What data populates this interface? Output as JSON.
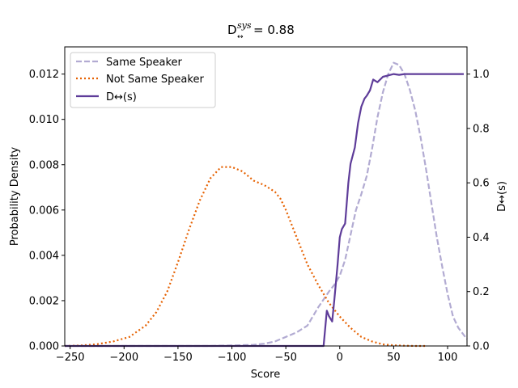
{
  "chart_data": {
    "type": "line",
    "title": {
      "main": "D",
      "sup": "sys",
      "sub": "↔",
      "rest": " = 0.88"
    },
    "xlabel": "Score",
    "ylabel_left": "Probability Density",
    "ylabel_right": "D↔(s)",
    "xlim": [
      -255,
      118
    ],
    "ylim_left": [
      0,
      0.0132
    ],
    "ylim_right": [
      0,
      1.1
    ],
    "x_ticks": [
      -250,
      -200,
      -150,
      -100,
      -50,
      0,
      50,
      100
    ],
    "x_tick_labels": [
      "−250",
      "−200",
      "−150",
      "−100",
      "−50",
      "0",
      "50",
      "100"
    ],
    "y_left_ticks": [
      0,
      0.002,
      0.004,
      0.006,
      0.008,
      0.01,
      0.012
    ],
    "y_left_tick_labels": [
      "0.000",
      "0.002",
      "0.004",
      "0.006",
      "0.008",
      "0.010",
      "0.012"
    ],
    "y_right_ticks": [
      0,
      0.2,
      0.4,
      0.6,
      0.8,
      1.0
    ],
    "y_right_tick_labels": [
      "0.0",
      "0.2",
      "0.4",
      "0.6",
      "0.8",
      "1.0"
    ],
    "grid": false,
    "legend_position": "top-left",
    "series": [
      {
        "name": "Same Speaker",
        "axis": "left",
        "color": "#b2abd2",
        "style": "dashed",
        "x": [
          -255,
          -120,
          -100,
          -80,
          -70,
          -60,
          -50,
          -40,
          -30,
          -20,
          -10,
          -5,
          0,
          5,
          10,
          15,
          20,
          25,
          30,
          35,
          40,
          45,
          50,
          55,
          60,
          65,
          70,
          75,
          80,
          85,
          90,
          95,
          100,
          105,
          110,
          118
        ],
        "y": [
          0,
          0,
          2e-05,
          5e-05,
          0.0001,
          0.0002,
          0.0004,
          0.0006,
          0.0009,
          0.0017,
          0.0024,
          0.0027,
          0.0031,
          0.0038,
          0.0049,
          0.006,
          0.0067,
          0.0075,
          0.0087,
          0.0101,
          0.0112,
          0.012,
          0.0125,
          0.0124,
          0.012,
          0.0113,
          0.0104,
          0.0092,
          0.0078,
          0.0063,
          0.0048,
          0.0035,
          0.0023,
          0.0013,
          0.0008,
          0.0003
        ]
      },
      {
        "name": "Not Same Speaker",
        "axis": "left",
        "color": "#e66101",
        "style": "dotted",
        "x": [
          -255,
          -240,
          -225,
          -210,
          -195,
          -180,
          -170,
          -160,
          -150,
          -140,
          -130,
          -120,
          -110,
          -100,
          -90,
          -80,
          -70,
          -60,
          -55,
          -50,
          -40,
          -30,
          -20,
          -10,
          0,
          10,
          20,
          30,
          40,
          50,
          60,
          70,
          80
        ],
        "y": [
          0,
          2e-05,
          8e-05,
          0.0002,
          0.0004,
          0.0009,
          0.0015,
          0.0024,
          0.0037,
          0.0051,
          0.0064,
          0.0074,
          0.0079,
          0.0079,
          0.0077,
          0.0073,
          0.0071,
          0.0068,
          0.0065,
          0.006,
          0.0048,
          0.0036,
          0.0027,
          0.0019,
          0.0013,
          0.0008,
          0.0004,
          0.0002,
          7e-05,
          3e-05,
          1e-05,
          0,
          0
        ]
      },
      {
        "name": "D↔(s)",
        "axis": "right",
        "color": "#5e3c99",
        "style": "solid",
        "x": [
          -255,
          -15,
          -12,
          -10,
          -7,
          -5,
          -2,
          0,
          2,
          5,
          8,
          10,
          14,
          17,
          20,
          23,
          25,
          28,
          31,
          35,
          40,
          45,
          50,
          55,
          60,
          65,
          70,
          80,
          100,
          115
        ],
        "y": [
          0,
          0,
          0.13,
          0.11,
          0.09,
          0.17,
          0.3,
          0.4,
          0.43,
          0.45,
          0.6,
          0.67,
          0.73,
          0.82,
          0.88,
          0.91,
          0.92,
          0.94,
          0.98,
          0.97,
          0.99,
          0.995,
          1.0,
          0.997,
          1.0,
          1.0,
          1.0,
          1.0,
          1.0,
          1.0
        ]
      }
    ]
  }
}
